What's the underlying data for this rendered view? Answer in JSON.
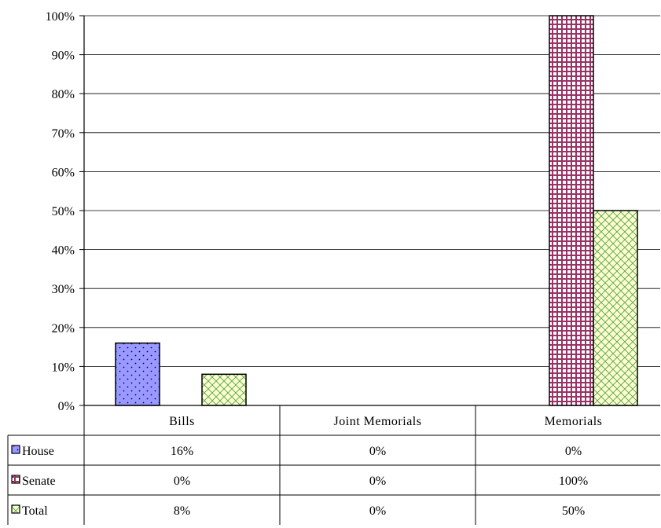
{
  "chart_data": {
    "type": "bar",
    "categories": [
      "Bills",
      "Joint Memorials",
      "Memorials"
    ],
    "series": [
      {
        "name": "House",
        "values": [
          16,
          0,
          0
        ],
        "value_labels": [
          "16%",
          "0%",
          "0%"
        ],
        "color": "#9999ff",
        "pattern": "dots"
      },
      {
        "name": "Senate",
        "values": [
          0,
          0,
          100
        ],
        "value_labels": [
          "0%",
          "0%",
          "100%"
        ],
        "color": "#993366",
        "pattern": "grid"
      },
      {
        "name": "Total",
        "values": [
          8,
          0,
          50
        ],
        "value_labels": [
          "8%",
          "0%",
          "50%"
        ],
        "color": "#ffffcc",
        "pattern": "diagonal-cross"
      }
    ],
    "y_ticks": [
      "0%",
      "10%",
      "20%",
      "30%",
      "40%",
      "50%",
      "60%",
      "70%",
      "80%",
      "90%",
      "100%"
    ],
    "ylim": [
      0,
      100
    ],
    "grid": true,
    "legend": "data-table",
    "title": "",
    "xlabel": "",
    "ylabel": ""
  }
}
